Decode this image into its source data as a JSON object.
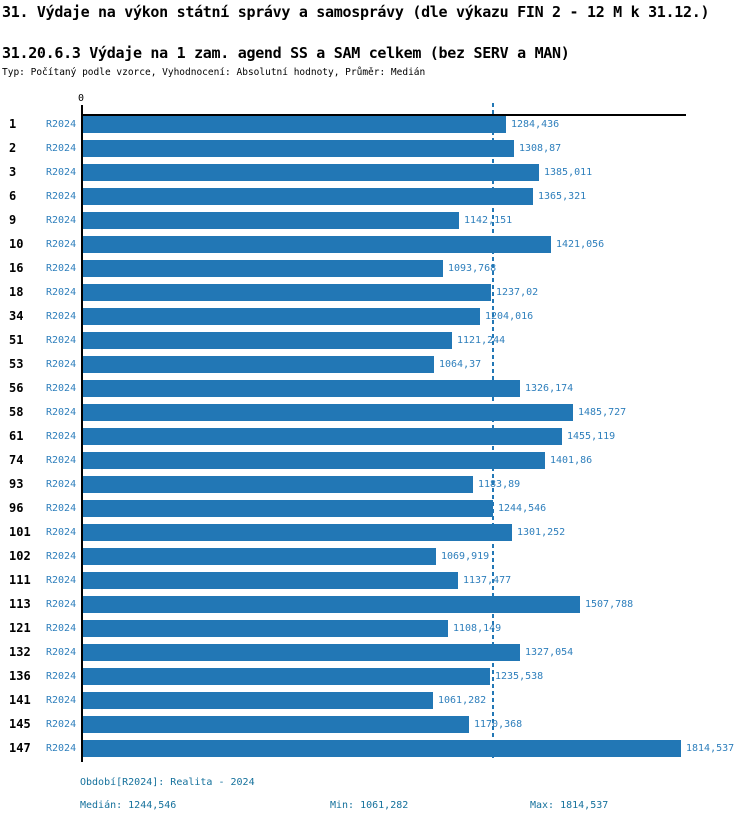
{
  "title": "31. Výdaje na výkon státní správy a samosprávy (dle výkazu FIN 2 - 12 M k 31.12.)",
  "subtitle": "31.20.6.3 Výdaje na 1 zam. agend SS a SAM celkem (bez SERV a MAN)",
  "meta_line": "Typ: Počítaný podle vzorce, Vyhodnocení: Absolutní hodnoty, Průměr: Medián",
  "chart_data": {
    "type": "bar",
    "orientation": "horizontal",
    "title": "31.20.6.3 Výdaje na 1 zam. agend SS a SAM celkem (bez SERV a MAN)",
    "zero_label": "0",
    "categories": [
      "1",
      "2",
      "3",
      "6",
      "9",
      "10",
      "16",
      "18",
      "34",
      "51",
      "53",
      "56",
      "58",
      "61",
      "74",
      "93",
      "96",
      "101",
      "102",
      "111",
      "113",
      "121",
      "132",
      "136",
      "141",
      "145",
      "147"
    ],
    "series": [
      {
        "name": "R2024",
        "values": [
          1284.436,
          1308.87,
          1385.011,
          1365.321,
          1142.151,
          1421.056,
          1093.768,
          1237.02,
          1204.016,
          1121.244,
          1064.37,
          1326.174,
          1485.727,
          1455.119,
          1401.86,
          1183.89,
          1244.546,
          1301.252,
          1069.919,
          1137.477,
          1507.788,
          1108.149,
          1327.054,
          1235.538,
          1061.282,
          1170.368,
          1814.537
        ],
        "value_labels": [
          "1284,436",
          "1308,87",
          "1385,011",
          "1365,321",
          "1142,151",
          "1421,056",
          "1093,768",
          "1237,02",
          "1204,016",
          "1121,244",
          "1064,37",
          "1326,174",
          "1485,727",
          "1455,119",
          "1401,86",
          "1183,89",
          "1244,546",
          "1301,252",
          "1069,919",
          "1137,477",
          "1507,788",
          "1108,149",
          "1327,054",
          "1235,538",
          "1061,282",
          "1170,368",
          "1814,537"
        ]
      }
    ],
    "median": 1244.546,
    "min": 1061.282,
    "max": 1814.537,
    "xlim": [
      0,
      1833
    ],
    "grid": false,
    "bar_color": "#2277b5",
    "median_line_color": "#2277b5"
  },
  "footer": {
    "period": "Období[R2024]: Realita - 2024",
    "median": "Medián: 1244,546",
    "min": "Min: 1061,282",
    "max": "Max: 1814,537"
  }
}
